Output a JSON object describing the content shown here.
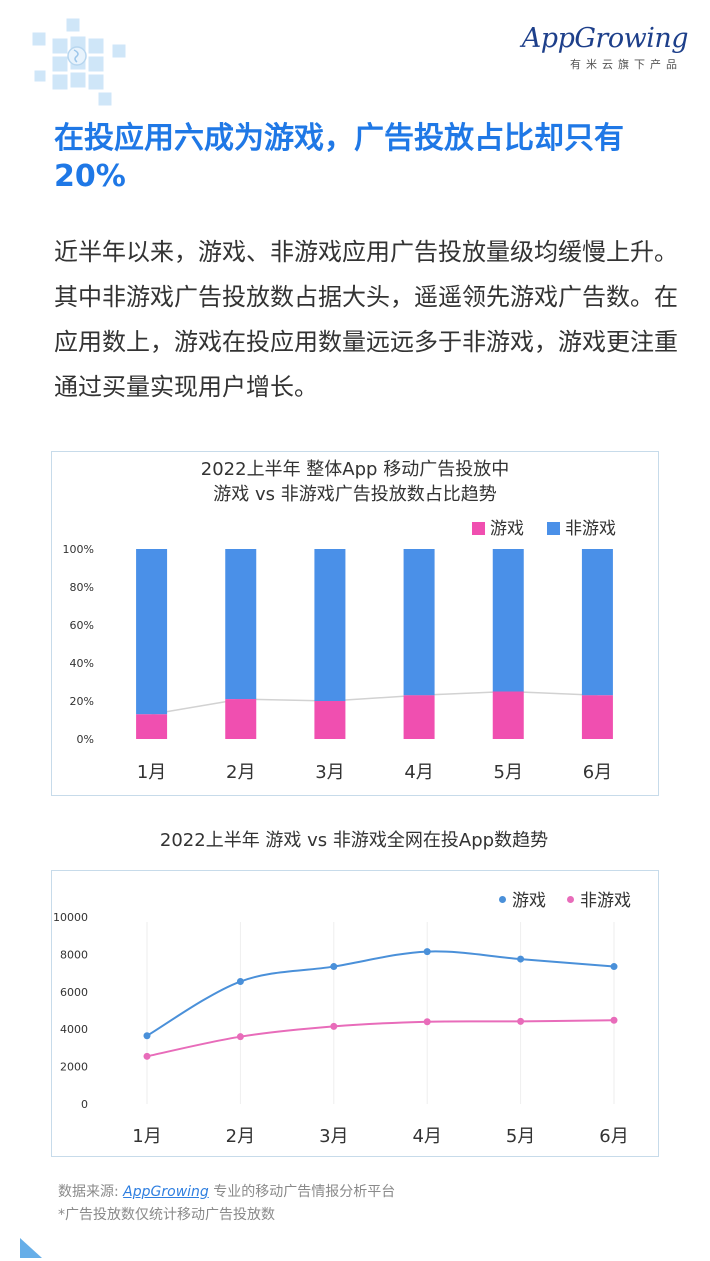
{
  "brand": {
    "logo_text": "AppGrowing",
    "tagline": "有米云旗下产品"
  },
  "headline": "在投应用六成为游戏，广告投放占比却只有20%",
  "body": "近半年以来，游戏、非游戏应用广告投放量级均缓慢上升。其中非游戏广告投放数占据大头，遥遥领先游戏广告数。在应用数上，游戏在投应用数量远远多于非游戏，游戏更注重通过买量实现用户增长。",
  "colors": {
    "accent": "#1f78e6",
    "game_bar": "#f04fb0",
    "nongame_bar": "#4a90e8",
    "game_line": "#4a90d9",
    "nongame_line": "#e86cba"
  },
  "chart_data": [
    {
      "type": "bar",
      "stacked": true,
      "title": "2022上半年 整体App 移动广告投放中",
      "subtitle": "游戏 vs 非游戏广告投放数占比趋势",
      "categories": [
        "1月",
        "2月",
        "3月",
        "4月",
        "5月",
        "6月"
      ],
      "series": [
        {
          "name": "游戏",
          "values": [
            13,
            21,
            20,
            23,
            25,
            23
          ]
        },
        {
          "name": "非游戏",
          "values": [
            87,
            79,
            80,
            77,
            75,
            77
          ]
        }
      ],
      "y_ticks": [
        "0%",
        "20%",
        "40%",
        "60%",
        "80%",
        "100%"
      ],
      "ylim": [
        0,
        100
      ],
      "legend": "top-right",
      "trend_line_series": "游戏"
    },
    {
      "type": "line",
      "title": "2022上半年 游戏 vs 非游戏全网在投App数趋势",
      "categories": [
        "1月",
        "2月",
        "3月",
        "4月",
        "5月",
        "6月"
      ],
      "series": [
        {
          "name": "游戏",
          "values": [
            3650,
            6550,
            7350,
            8150,
            7750,
            7350
          ]
        },
        {
          "name": "非游戏",
          "values": [
            2550,
            3600,
            4150,
            4400,
            4420,
            4480
          ]
        }
      ],
      "y_ticks": [
        "0",
        "2000",
        "4000",
        "6000",
        "8000",
        "10000"
      ],
      "ylim": [
        0,
        10000
      ],
      "legend": "top-right",
      "vertical_gridlines": true
    }
  ],
  "footer": {
    "source_prefix": "数据来源: ",
    "source_link": "AppGrowing",
    "source_suffix": " 专业的移动广告情报分析平台",
    "note": "*广告投放数仅统计移动广告投放数"
  }
}
